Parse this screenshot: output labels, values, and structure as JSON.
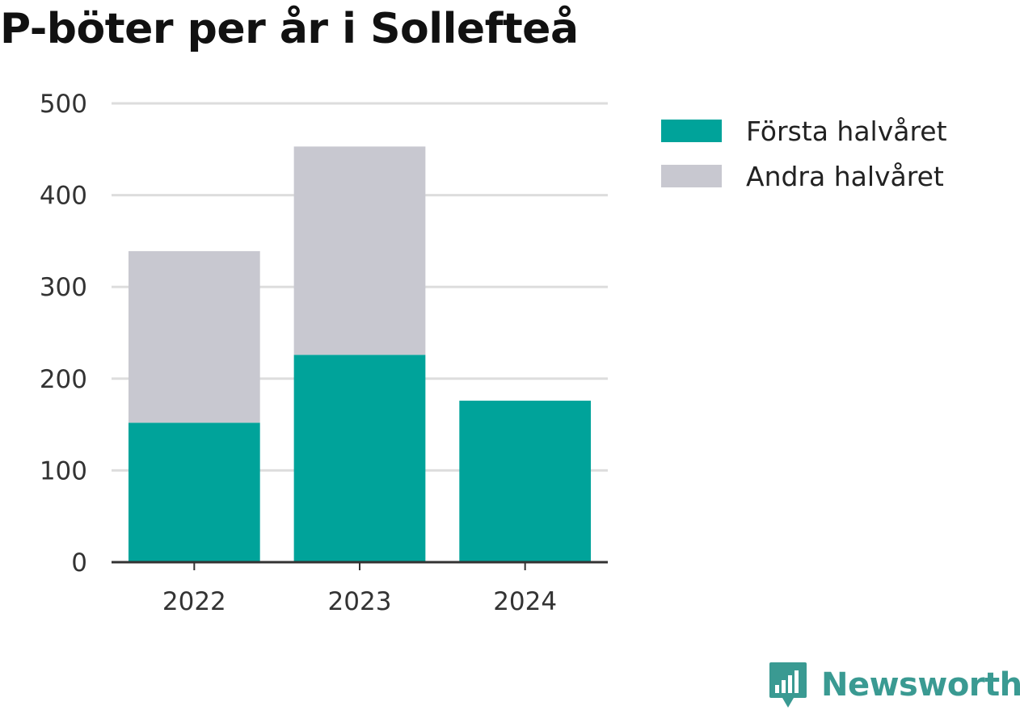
{
  "chart_data": {
    "type": "bar",
    "stacked": true,
    "title": "P-böter per år i Sollefteå",
    "xlabel": "",
    "ylabel": "",
    "categories": [
      "2022",
      "2023",
      "2024"
    ],
    "series": [
      {
        "name": "Första halvåret",
        "color": "#00a39a",
        "values": [
          152,
          226,
          176
        ]
      },
      {
        "name": "Andra halvåret",
        "color": "#c8c8d0",
        "values": [
          187,
          227,
          0
        ]
      }
    ],
    "ylim": [
      0,
      500
    ],
    "yticks": [
      "0",
      "100",
      "200",
      "300",
      "400",
      "500"
    ],
    "grid": true,
    "legend_position": "right"
  },
  "branding": {
    "name": "Newsworthy",
    "color": "#3a9a92",
    "icon": "newsworthy-logo-icon"
  }
}
